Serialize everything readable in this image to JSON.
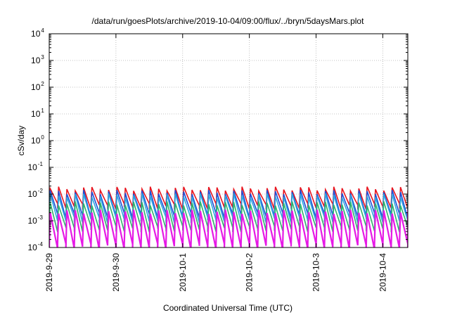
{
  "chart_data": {
    "type": "line",
    "title": "/data/run/goesPlots/archive/2019-10-04/09:00/flux/../bryn/5daysMars.plot",
    "xlabel": "Coordinated Universal Time (UTC)",
    "ylabel": "cSv/day",
    "yscale": "log",
    "ylim": [
      0.0001,
      10000
    ],
    "y_ticks": [
      {
        "base": "10",
        "exp": "-4",
        "value": 0.0001
      },
      {
        "base": "10",
        "exp": "-3",
        "value": 0.001
      },
      {
        "base": "10",
        "exp": "-2",
        "value": 0.01
      },
      {
        "base": "10",
        "exp": "-1",
        "value": 0.1
      },
      {
        "base": "10",
        "exp": "0",
        "value": 1
      },
      {
        "base": "10",
        "exp": "1",
        "value": 10
      },
      {
        "base": "10",
        "exp": "2",
        "value": 100
      },
      {
        "base": "10",
        "exp": "3",
        "value": 1000
      },
      {
        "base": "10",
        "exp": "4",
        "value": 10000
      }
    ],
    "xlim": [
      "2019-09-29T00:00",
      "2019-10-04T09:00"
    ],
    "x_ticks": [
      "2019-9-29",
      "2019-9-30",
      "2019-10-1",
      "2019-10-2",
      "2019-10-3",
      "2019-10-4"
    ],
    "grid": true,
    "cycles_per_day": 8,
    "series": [
      {
        "color": "#e8141e",
        "peak": 0.016,
        "trough": 0.0035
      },
      {
        "color": "#1f4fd6",
        "peak": 0.012,
        "trough": 0.0016
      },
      {
        "color": "#2ea8e0",
        "peak": 0.009,
        "trough": 0.0011
      },
      {
        "color": "#2fb36b",
        "peak": 0.0045,
        "trough": 0.0005
      },
      {
        "color": "#e619e6",
        "peak": 0.0022,
        "trough": 0.00011
      }
    ]
  }
}
